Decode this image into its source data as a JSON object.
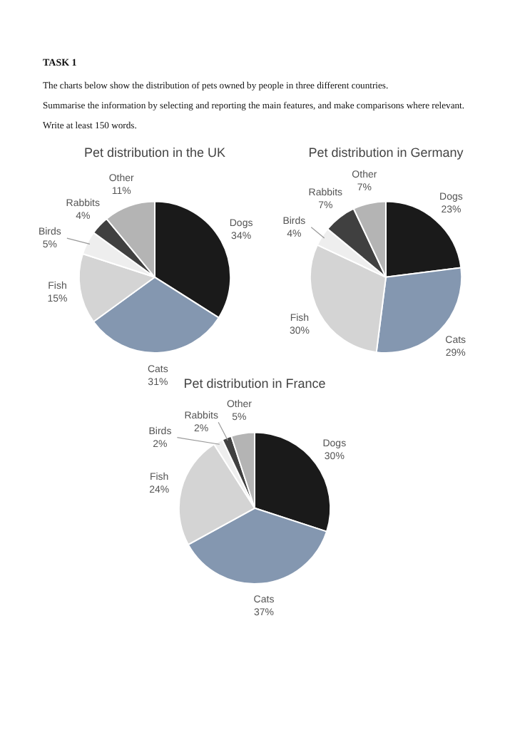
{
  "chart_data": [
    {
      "type": "other",
      "title": "TASK 1",
      "annotations": [
        "The charts below show the distribution of pets owned by people in three different countries.",
        "Summarise the information by selecting and reporting the main features, and make comparisons where relevant.",
        "Write at least 150 words."
      ]
    },
    {
      "type": "pie",
      "title": "Pet distribution in the UK",
      "categories": [
        "Dogs",
        "Cats",
        "Fish",
        "Birds",
        "Rabbits",
        "Other"
      ],
      "values": [
        34,
        31,
        15,
        5,
        4,
        11
      ],
      "colors": [
        "#1a1a1a",
        "#8497b0",
        "#d4d4d4",
        "#eeeeee",
        "#404040",
        "#b4b4b4"
      ],
      "value_labels": [
        "34%",
        "31%",
        "15%",
        "5%",
        "4%",
        "11%"
      ]
    },
    {
      "type": "pie",
      "title": "Pet distribution in Germany",
      "categories": [
        "Dogs",
        "Cats",
        "Fish",
        "Birds",
        "Rabbits",
        "Other"
      ],
      "values": [
        23,
        29,
        30,
        4,
        7,
        7
      ],
      "colors": [
        "#1a1a1a",
        "#8497b0",
        "#d4d4d4",
        "#eeeeee",
        "#404040",
        "#b4b4b4"
      ],
      "value_labels": [
        "23%",
        "29%",
        "30%",
        "4%",
        "7%",
        "7%"
      ]
    },
    {
      "type": "pie",
      "title": "Pet distribution in France",
      "categories": [
        "Dogs",
        "Cats",
        "Fish",
        "Birds",
        "Rabbits",
        "Other"
      ],
      "values": [
        30,
        37,
        24,
        2,
        2,
        5
      ],
      "colors": [
        "#1a1a1a",
        "#8497b0",
        "#d4d4d4",
        "#eeeeee",
        "#404040",
        "#b4b4b4"
      ],
      "value_labels": [
        "30%",
        "37%",
        "24%",
        "2%",
        "2%",
        "5%"
      ]
    }
  ]
}
